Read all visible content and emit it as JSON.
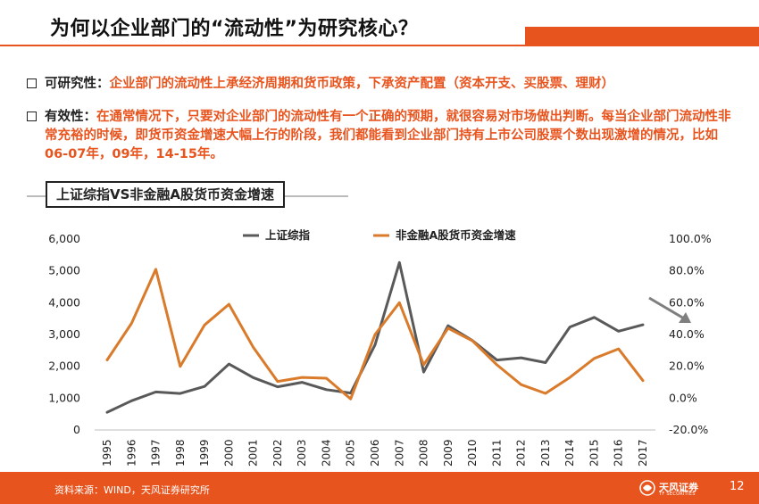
{
  "header": {
    "title": "为何以企业部门的“流动性”为研究核心？"
  },
  "bullets": [
    {
      "label": "可研究性：",
      "text": "企业部门的流动性上承经济周期和货币政策，下承资产配置（资本开支、买股票、理财）"
    },
    {
      "label": "有效性：",
      "text": "在通常情况下，只要对企业部门的流动性有一个正确的预期，就很容易对市场做出判断。每当企业部门流动性非常充裕的时候，即货币资金增速大幅上行的阶段，我们都能看到企业部门持有上市公司股票个数出现激增的情况，比如06-07年，09年，14-15年。"
    }
  ],
  "chart_label": "上证综指VS非金融A股货币资金增速",
  "chart_data": {
    "type": "line",
    "categories": [
      "1995",
      "1996",
      "1997",
      "1998",
      "1999",
      "2000",
      "2001",
      "2002",
      "2003",
      "2004",
      "2005",
      "2006",
      "2007",
      "2008",
      "2009",
      "2010",
      "2011",
      "2012",
      "2013",
      "2014",
      "2015",
      "2016",
      "2017"
    ],
    "series": [
      {
        "name": "上证综指",
        "axis": "left",
        "color": "#595959",
        "values": [
          555,
          917,
          1194,
          1147,
          1367,
          2073,
          1646,
          1358,
          1497,
          1267,
          1161,
          2675,
          5262,
          1821,
          3277,
          2808,
          2199,
          2269,
          2116,
          3235,
          3539,
          3104,
          3307
        ]
      },
      {
        "name": "非金融A股货币资金增速",
        "axis": "right",
        "color": "#D97B2B",
        "values": [
          24.0,
          47.0,
          81.0,
          20.0,
          46.0,
          59.0,
          32.0,
          10.5,
          13.0,
          12.5,
          -0.5,
          40.0,
          60.0,
          21.0,
          44.0,
          36.0,
          21.0,
          8.5,
          3.0,
          13.0,
          25.0,
          31.0,
          11.0
        ]
      }
    ],
    "y_left": {
      "min": 0,
      "max": 6000,
      "ticks": [
        "0",
        "1,000",
        "2,000",
        "3,000",
        "4,000",
        "5,000",
        "6,000"
      ]
    },
    "y_right": {
      "min": -20,
      "max": 100,
      "ticks": [
        "-20.0%",
        "0.0%",
        "20.0%",
        "40.0%",
        "60.0%",
        "80.0%",
        "100.0%"
      ]
    },
    "legend_position": "top-center"
  },
  "footer": {
    "source": "资料来源：WIND，天风证券研究所",
    "logo_name": "天风证券",
    "logo_en": "TF SECURITIES",
    "page": "12",
    "accent": "#E8541E"
  }
}
